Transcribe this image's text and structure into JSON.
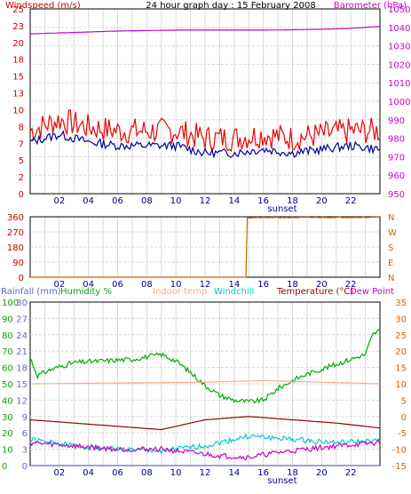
{
  "chart_data": [
    {
      "type": "line",
      "title": "24 hour graph day : 15 February 2008",
      "legend": [
        {
          "label": "Windspeed (m/s)",
          "color": "#cc0000",
          "placement": "top-left"
        },
        {
          "label": "Barometer (hPa)",
          "color": "#cc00cc",
          "placement": "top-right"
        }
      ],
      "x_ticks": [
        "02",
        "04",
        "06",
        "08",
        "10",
        "12",
        "14",
        "16",
        "18",
        "20",
        "22"
      ],
      "x_marker": "sunset",
      "y_left": {
        "ticks": [
          "0",
          "2",
          "5",
          "7",
          "8",
          "10",
          "13",
          "15",
          "18",
          "20",
          "23",
          "25"
        ],
        "color": "#cc0000"
      },
      "y_right": {
        "ticks": [
          "950",
          "960",
          "970",
          "980",
          "990",
          "1000",
          "1010",
          "1020",
          "1030",
          "1040",
          "1050"
        ],
        "color": "#cc00cc"
      },
      "series": [
        {
          "name": "Barometer (hPa)",
          "axis": "right",
          "color": "#cc00cc",
          "x": [
            0,
            2,
            4,
            6,
            8,
            10,
            12,
            14,
            16,
            18,
            20,
            22,
            24
          ],
          "y": [
            1036.5,
            1037,
            1037.5,
            1038,
            1038.3,
            1038.5,
            1038.5,
            1038.5,
            1038.5,
            1038.7,
            1039,
            1039.5,
            1040.5
          ]
        },
        {
          "name": "Windspeed",
          "axis": "left",
          "color": "#ee0000",
          "x": [
            0,
            2,
            4,
            6,
            8,
            10,
            12,
            14,
            16,
            18,
            20,
            22,
            24
          ],
          "y": [
            8.5,
            10,
            9,
            8.5,
            8.5,
            8.5,
            7.5,
            7.5,
            8,
            7.5,
            8,
            8.5,
            8.5
          ]
        },
        {
          "name": "Wind gust",
          "axis": "left",
          "color": "#000099",
          "x": [
            0,
            2,
            4,
            6,
            8,
            10,
            12,
            14,
            16,
            18,
            20,
            22,
            24
          ],
          "y": [
            7,
            8,
            7,
            6.5,
            6.5,
            6.5,
            5.5,
            5.5,
            6,
            5.5,
            6,
            6.5,
            6
          ]
        }
      ]
    },
    {
      "type": "line",
      "x_ticks": [
        "02",
        "04",
        "06",
        "08",
        "10",
        "12",
        "14",
        "16",
        "18",
        "20",
        "22"
      ],
      "y_left": {
        "ticks": [
          "0",
          "90",
          "180",
          "270",
          "360"
        ],
        "color": "#cc0000"
      },
      "y_right": {
        "ticks": [
          "N",
          "E",
          "S",
          "W",
          "N"
        ],
        "color": "#cc6600"
      },
      "series": [
        {
          "name": "Wind direction",
          "axis": "left",
          "color": "#cc6600",
          "x": [
            0,
            14.8,
            14.9,
            24
          ],
          "y": [
            0,
            0,
            355,
            357
          ]
        }
      ]
    },
    {
      "type": "line",
      "legend": [
        {
          "label": "Rainfall (mm)",
          "color": "#6666cc"
        },
        {
          "label": "Humidity %",
          "color": "#00aa00"
        },
        {
          "label": "Indoor temp",
          "color": "#ffaa88"
        },
        {
          "label": "Windchill",
          "color": "#00cccc"
        },
        {
          "label": "Temperature (°C)",
          "color": "#990000"
        },
        {
          "label": "Dew Point",
          "color": "#cc00cc"
        }
      ],
      "x_ticks": [
        "02",
        "04",
        "06",
        "08",
        "10",
        "12",
        "14",
        "16",
        "18",
        "20",
        "22"
      ],
      "x_marker": "sunset",
      "y_humidity": {
        "ticks": [
          "0",
          "10",
          "20",
          "30",
          "40",
          "50",
          "60",
          "70",
          "80",
          "90",
          "100"
        ],
        "color": "#00aa00"
      },
      "y_rain": {
        "ticks": [
          "0",
          "3",
          "6",
          "9",
          "12",
          "15",
          "18",
          "21",
          "24",
          "27",
          "30"
        ],
        "color": "#6666cc"
      },
      "y_temp": {
        "ticks": [
          "-15",
          "-10",
          "-5",
          "0",
          "5",
          "10",
          "15",
          "20",
          "25",
          "30",
          "35"
        ],
        "color": "#cc6600"
      },
      "series": [
        {
          "name": "Humidity %",
          "axis": "humidity",
          "color": "#00aa00",
          "x": [
            0,
            0.5,
            1.5,
            3,
            5,
            7,
            9,
            10,
            11,
            12,
            13,
            14,
            15,
            16,
            17,
            18,
            19,
            20,
            21,
            22,
            23,
            23.5,
            24
          ],
          "y": [
            66,
            55,
            59,
            63,
            64,
            65,
            68,
            64,
            57,
            49,
            43,
            40,
            39,
            40,
            47,
            52,
            56,
            59,
            62,
            65,
            68,
            80,
            83
          ]
        },
        {
          "name": "Indoor temp",
          "axis": "temp",
          "color": "#ffaa88",
          "x": [
            0,
            12,
            16,
            24
          ],
          "y": [
            10,
            10.5,
            11,
            10
          ]
        },
        {
          "name": "Temperature",
          "axis": "temp",
          "color": "#990000",
          "x": [
            0,
            3,
            6,
            9,
            12,
            15,
            18,
            21,
            24
          ],
          "y": [
            -1,
            -2,
            -3,
            -4,
            -1,
            0,
            -1,
            -2,
            -3.5
          ]
        },
        {
          "name": "Windchill",
          "axis": "temp",
          "color": "#00cccc",
          "x": [
            0,
            3,
            6,
            9,
            12,
            15,
            18,
            21,
            24
          ],
          "y": [
            -7,
            -9,
            -10,
            -10.5,
            -9,
            -6,
            -7,
            -8,
            -7.5
          ]
        },
        {
          "name": "Dew Point",
          "axis": "temp",
          "color": "#cc00cc",
          "x": [
            0,
            3,
            6,
            9,
            11,
            13,
            15,
            17,
            19,
            21,
            24
          ],
          "y": [
            -8,
            -9,
            -10,
            -10,
            -11,
            -12,
            -12.5,
            -11,
            -10,
            -9,
            -8
          ]
        },
        {
          "name": "Rainfall (mm)",
          "axis": "rain",
          "color": "#6666cc",
          "x": [
            0,
            24
          ],
          "y": [
            0,
            0
          ]
        }
      ]
    }
  ]
}
